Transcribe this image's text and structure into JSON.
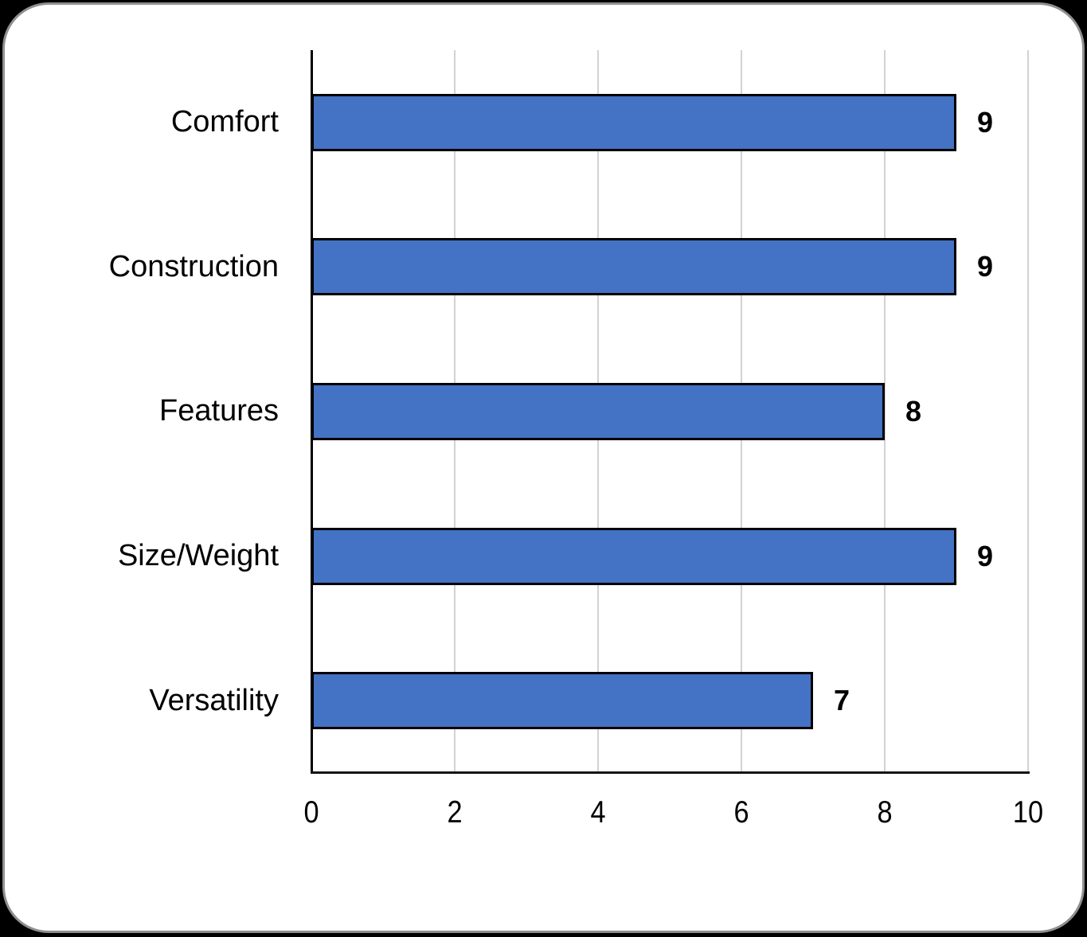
{
  "page": {
    "background_color": "#000000"
  },
  "card": {
    "background_color": "#ffffff",
    "border_color": "#8f8f8f"
  },
  "chart_data": {
    "type": "bar",
    "orientation": "horizontal",
    "title": "",
    "xlabel": "",
    "ylabel": "",
    "categories": [
      "Comfort",
      "Construction",
      "Features",
      "Size/Weight",
      "Versatility"
    ],
    "values": [
      9,
      9,
      8,
      9,
      7
    ],
    "data_labels": [
      "9",
      "9",
      "8",
      "9",
      "7"
    ],
    "xlim": [
      0,
      10
    ],
    "xticks": [
      0,
      2,
      4,
      6,
      8,
      10
    ],
    "xtick_labels": [
      "0",
      "2",
      "4",
      "6",
      "8",
      "10"
    ],
    "grid": "vertical-on",
    "legend": "none",
    "colors": {
      "bar_fill": "#4472c4",
      "bar_border": "#000000",
      "gridline": "#d2d2d2",
      "axis_line": "#000000",
      "text": "#000000"
    }
  }
}
